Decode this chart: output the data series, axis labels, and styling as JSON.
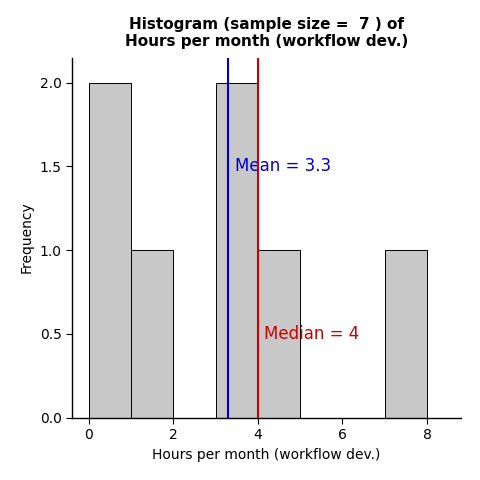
{
  "title_line1": "Histogram (sample size =  7 ) of",
  "title_line2": "Hours per month (workflow dev.)",
  "xlabel": "Hours per month (workflow dev.)",
  "ylabel": "Frequency",
  "bin_edges": [
    0,
    1,
    2,
    3,
    4,
    5,
    6,
    7,
    8
  ],
  "bar_heights": [
    2,
    1,
    0,
    2,
    1,
    0,
    0,
    1
  ],
  "bar_color": "#c8c8c8",
  "bar_edge_color": "#000000",
  "mean_value": 3.3,
  "median_value": 4,
  "mean_color": "#0000cc",
  "median_color": "#cc0000",
  "mean_label": "Mean = 3.3",
  "median_label": "Median = 4",
  "xlim": [
    -0.4,
    8.8
  ],
  "ylim": [
    0,
    2.15
  ],
  "yticks": [
    0.0,
    0.5,
    1.0,
    1.5,
    2.0
  ],
  "xticks": [
    0,
    2,
    4,
    6,
    8
  ],
  "background_color": "#ffffff",
  "title_fontsize": 11,
  "axis_fontsize": 10,
  "tick_fontsize": 10,
  "annotation_fontsize": 12
}
